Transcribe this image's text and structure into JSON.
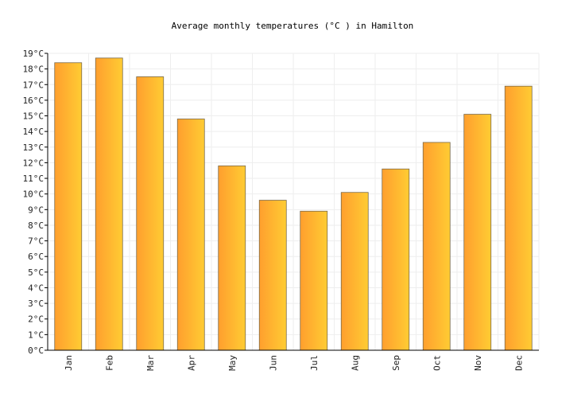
{
  "chart_data": {
    "type": "bar",
    "title": "Average monthly temperatures (°C ) in Hamilton",
    "xlabel": "",
    "ylabel": "",
    "categories": [
      "Jan",
      "Feb",
      "Mar",
      "Apr",
      "May",
      "Jun",
      "Jul",
      "Aug",
      "Sep",
      "Oct",
      "Nov",
      "Dec"
    ],
    "values": [
      18.4,
      18.7,
      17.5,
      14.8,
      11.8,
      9.6,
      8.9,
      10.1,
      11.6,
      13.3,
      15.1,
      16.9
    ],
    "ylim": [
      0,
      19
    ],
    "y_ticks": [
      "0°C",
      "1°C",
      "2°C",
      "3°C",
      "4°C",
      "5°C",
      "6°C",
      "7°C",
      "8°C",
      "9°C",
      "10°C",
      "11°C",
      "12°C",
      "13°C",
      "14°C",
      "15°C",
      "16°C",
      "17°C",
      "18°C",
      "19°C"
    ],
    "grid": true,
    "legend": "none",
    "colors": {
      "bar_start": "#ff9f2e",
      "bar_end": "#ffcc33",
      "bar_stroke": "#7a6a4a",
      "grid": "#eeeeee",
      "axis": "#000000"
    }
  }
}
